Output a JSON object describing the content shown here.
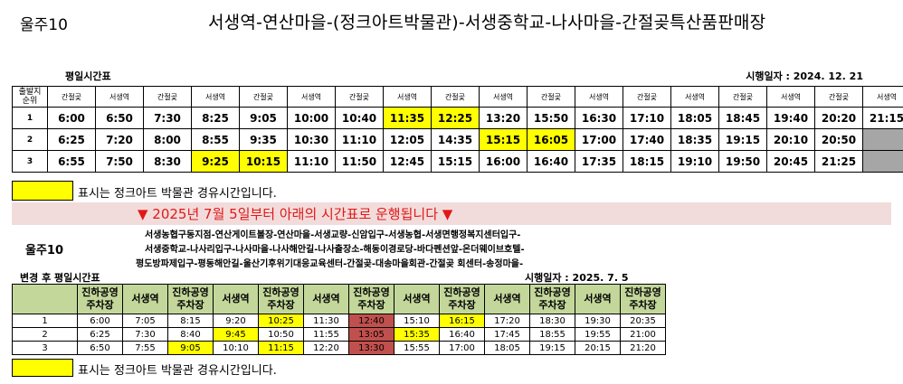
{
  "header": {
    "route": "울주10",
    "title": "서생역-연산마을-(정크아트박물관)-서생중학교-나사마을-간절곶특산품판매장"
  },
  "table1": {
    "label": "평일시간표",
    "date": "시행일자 : 2024. 12. 21",
    "corner": "출발지\n순위",
    "columns": [
      "간절곶",
      "서생역",
      "간절곶",
      "서생역",
      "간절곶",
      "서생역",
      "간절곶",
      "서생역",
      "간절곶",
      "서생역",
      "간절곶",
      "서생역",
      "간절곶",
      "서생역",
      "간절곶",
      "서생역",
      "간절곶",
      "서생역"
    ],
    "rows": [
      {
        "no": "1",
        "times": [
          "6:00",
          "6:50",
          "7:30",
          "8:25",
          "9:05",
          "10:00",
          "10:40",
          "11:35",
          "12:25",
          "13:20",
          "15:50",
          "16:30",
          "17:10",
          "18:05",
          "18:45",
          "19:40",
          "20:20",
          "21:15"
        ]
      },
      {
        "no": "2",
        "times": [
          "6:25",
          "7:20",
          "8:00",
          "8:55",
          "9:35",
          "10:30",
          "11:10",
          "12:05",
          "14:35",
          "15:15",
          "16:05",
          "17:00",
          "17:40",
          "18:35",
          "19:15",
          "20:10",
          "20:50",
          ""
        ]
      },
      {
        "no": "3",
        "times": [
          "6:55",
          "7:50",
          "8:30",
          "9:25",
          "10:15",
          "11:10",
          "11:50",
          "12:45",
          "15:15",
          "16:00",
          "16:40",
          "17:35",
          "18:15",
          "19:10",
          "19:50",
          "20:45",
          "21:25",
          ""
        ]
      }
    ],
    "highlights": {
      "yellow": [
        [
          0,
          7
        ],
        [
          0,
          8
        ],
        [
          1,
          9
        ],
        [
          1,
          10
        ],
        [
          2,
          3
        ],
        [
          2,
          4
        ]
      ],
      "gray": [
        [
          1,
          17
        ],
        [
          2,
          17
        ]
      ]
    }
  },
  "legend1": "표시는 정크아트 박물관 경유시간입니다.",
  "notice": "▼ 2025년 7월 5일부터 아래의 시간표로 운행됩니다 ▼",
  "route2": {
    "name": "울주10",
    "stops_line1": "서생농협구동지점-연산게이트볼장-연산마을-서생교량-신암입구-서생농협-서생면행정복지센터입구-",
    "stops_line2": "서생중학교-나사리입구-나사마을-나사해안길-나사출장소-해동이경로당-바다펜션앞-온더웨이브호텔-",
    "stops_line3": "평도방파제입구-평동해안길-울산기후위기대응교육센터-간절곶-대송마을회관-간절곶 회센터-송정마을-"
  },
  "table2": {
    "label": "변경 후 평일시간표",
    "date": "시행일자 : 2025. 7. 5",
    "columns": [
      "",
      "진하공영\n주차장",
      "서생역",
      "진하공영\n주차장",
      "서생역",
      "진하공영\n주차장",
      "서생역",
      "진하공영\n주차장",
      "서생역",
      "진하공영\n주차장",
      "서생역",
      "진하공영\n주차장",
      "서생역",
      "진하공영\n주차장"
    ],
    "rows": [
      {
        "no": "1",
        "times": [
          "6:00",
          "7:05",
          "8:15",
          "9:20",
          "10:25",
          "11:30",
          "12:40",
          "15:10",
          "16:15",
          "17:20",
          "18:30",
          "19:30",
          "20:35"
        ]
      },
      {
        "no": "2",
        "times": [
          "6:25",
          "7:30",
          "8:40",
          "9:45",
          "10:50",
          "11:55",
          "13:05",
          "15:35",
          "16:40",
          "17:45",
          "18:55",
          "19:55",
          "21:00"
        ]
      },
      {
        "no": "3",
        "times": [
          "6:50",
          "7:55",
          "9:05",
          "10:10",
          "11:15",
          "12:20",
          "13:30",
          "15:55",
          "17:00",
          "18:05",
          "19:15",
          "20:15",
          "21:20"
        ]
      }
    ],
    "highlights": {
      "yellow": [
        [
          0,
          4
        ],
        [
          0,
          8
        ],
        [
          1,
          3
        ],
        [
          1,
          7
        ],
        [
          2,
          2
        ],
        [
          2,
          4
        ]
      ],
      "red": [
        [
          0,
          6
        ],
        [
          1,
          6
        ],
        [
          2,
          6
        ]
      ]
    }
  },
  "legend2": "표시는 정크아트 박물관 경유시간입니다.",
  "colors": {
    "highlight": "#ffff00",
    "unused": "#a6a6a6",
    "changed": "#c0504d",
    "header_green": "#c4d79b",
    "notice_band": "#f2dcdb",
    "notice_text": "#e01818"
  }
}
